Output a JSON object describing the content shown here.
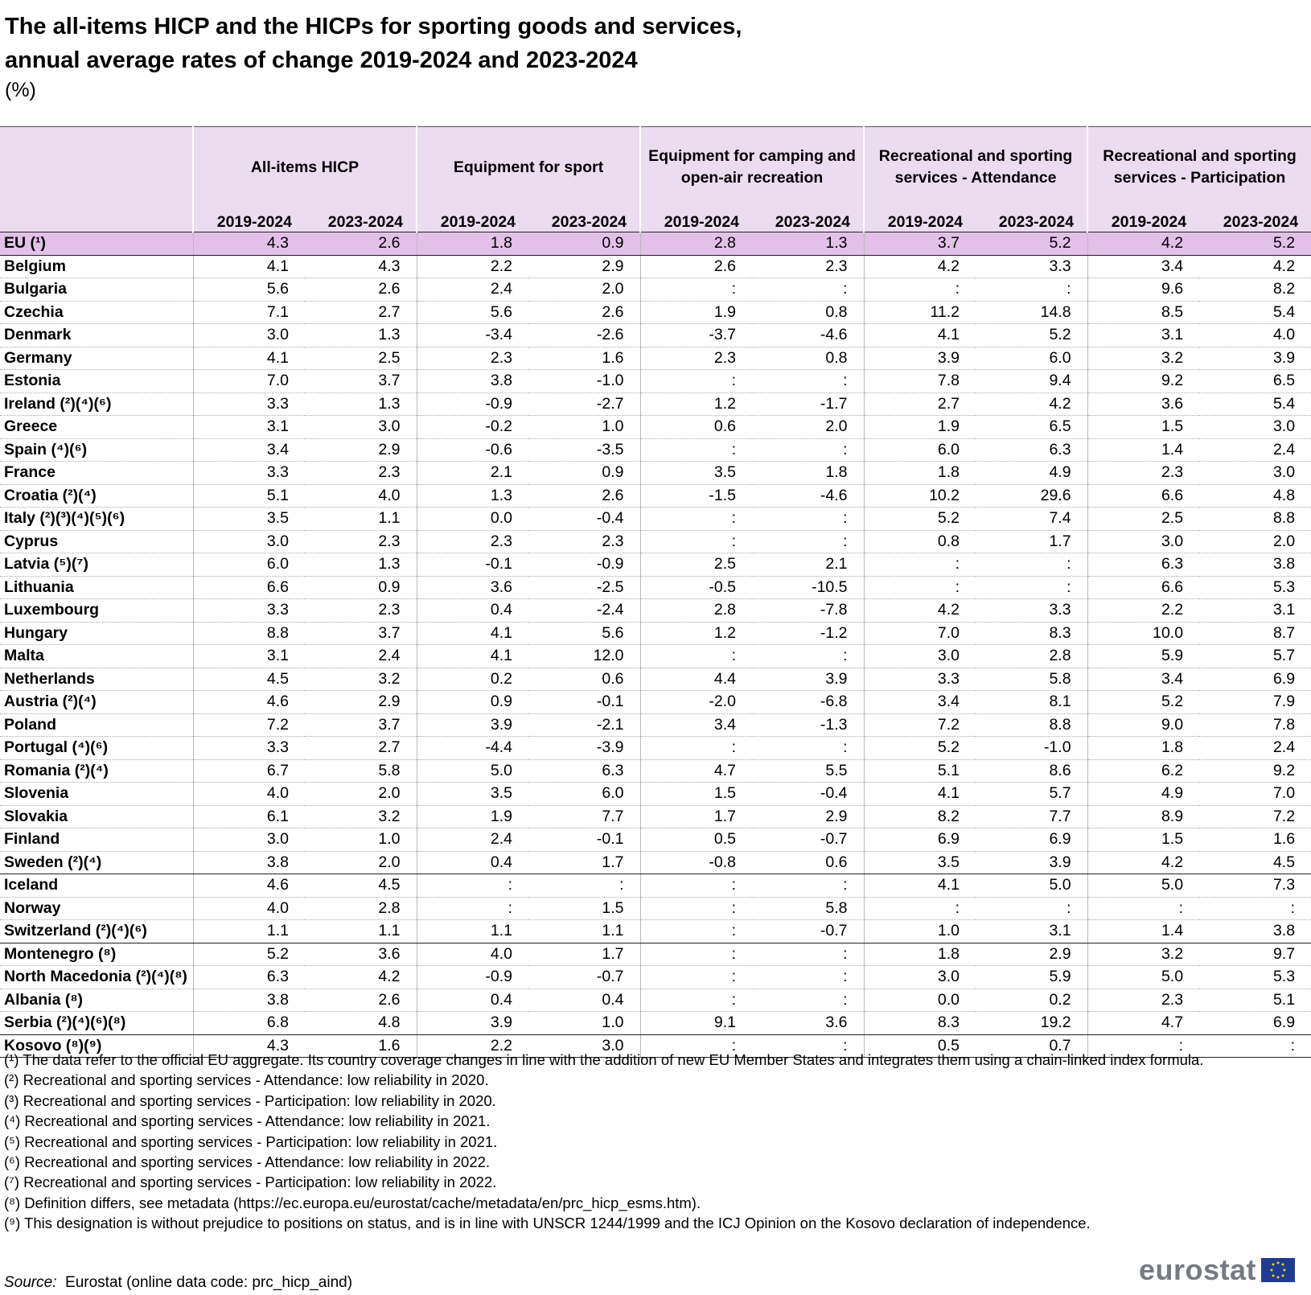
{
  "header": {
    "title_lines": [
      "The all-items HICP and the HICPs for sporting goods and services,",
      "annual average rates of change 2019-2024 and 2023-2024"
    ],
    "unit": "(%)"
  },
  "table": {
    "groups": [
      {
        "name": "All-items HICP",
        "periods": [
          "2019-2024",
          "2023-2024"
        ]
      },
      {
        "name": "Equipment for sport",
        "periods": [
          "2019-2024",
          "2023-2024"
        ]
      },
      {
        "name": "Equipment for camping and open-air recreation",
        "periods": [
          "2019-2024",
          "2023-2024"
        ]
      },
      {
        "name": "Recreational and sporting services - Attendance",
        "periods": [
          "2019-2024",
          "2023-2024"
        ]
      },
      {
        "name": "Recreational and sporting services - Participation",
        "periods": [
          "2019-2024",
          "2023-2024"
        ]
      }
    ],
    "row_groups": [
      [
        {
          "label": "EU (¹)",
          "values": [
            "4.3",
            "2.6",
            "1.8",
            "0.9",
            "2.8",
            "1.3",
            "3.7",
            "5.2",
            "4.2",
            "5.2"
          ]
        }
      ],
      [
        {
          "label": "Belgium",
          "values": [
            "4.1",
            "4.3",
            "2.2",
            "2.9",
            "2.6",
            "2.3",
            "4.2",
            "3.3",
            "3.4",
            "4.2"
          ]
        },
        {
          "label": "Bulgaria",
          "values": [
            "5.6",
            "2.6",
            "2.4",
            "2.0",
            ":",
            ":",
            ":",
            ":",
            "9.6",
            "8.2"
          ]
        },
        {
          "label": "Czechia",
          "values": [
            "7.1",
            "2.7",
            "5.6",
            "2.6",
            "1.9",
            "0.8",
            "11.2",
            "14.8",
            "8.5",
            "5.4"
          ]
        },
        {
          "label": "Denmark",
          "values": [
            "3.0",
            "1.3",
            "-3.4",
            "-2.6",
            "-3.7",
            "-4.6",
            "4.1",
            "5.2",
            "3.1",
            "4.0"
          ]
        },
        {
          "label": "Germany",
          "values": [
            "4.1",
            "2.5",
            "2.3",
            "1.6",
            "2.3",
            "0.8",
            "3.9",
            "6.0",
            "3.2",
            "3.9"
          ]
        },
        {
          "label": "Estonia",
          "values": [
            "7.0",
            "3.7",
            "3.8",
            "-1.0",
            ":",
            ":",
            "7.8",
            "9.4",
            "9.2",
            "6.5"
          ]
        },
        {
          "label": "Ireland (²)(⁴)(⁶)",
          "values": [
            "3.3",
            "1.3",
            "-0.9",
            "-2.7",
            "1.2",
            "-1.7",
            "2.7",
            "4.2",
            "3.6",
            "5.4"
          ]
        },
        {
          "label": "Greece",
          "values": [
            "3.1",
            "3.0",
            "-0.2",
            "1.0",
            "0.6",
            "2.0",
            "1.9",
            "6.5",
            "1.5",
            "3.0"
          ]
        },
        {
          "label": "Spain (⁴)(⁶)",
          "values": [
            "3.4",
            "2.9",
            "-0.6",
            "-3.5",
            ":",
            ":",
            "6.0",
            "6.3",
            "1.4",
            "2.4"
          ]
        },
        {
          "label": "France",
          "values": [
            "3.3",
            "2.3",
            "2.1",
            "0.9",
            "3.5",
            "1.8",
            "1.8",
            "4.9",
            "2.3",
            "3.0"
          ]
        },
        {
          "label": "Croatia (²)(⁴)",
          "values": [
            "5.1",
            "4.0",
            "1.3",
            "2.6",
            "-1.5",
            "-4.6",
            "10.2",
            "29.6",
            "6.6",
            "4.8"
          ]
        },
        {
          "label": "Italy (²)(³)(⁴)(⁵)(⁶)",
          "values": [
            "3.5",
            "1.1",
            "0.0",
            "-0.4",
            ":",
            ":",
            "5.2",
            "7.4",
            "2.5",
            "8.8"
          ]
        },
        {
          "label": "Cyprus",
          "values": [
            "3.0",
            "2.3",
            "2.3",
            "2.3",
            ":",
            ":",
            "0.8",
            "1.7",
            "3.0",
            "2.0"
          ]
        },
        {
          "label": "Latvia (⁵)(⁷)",
          "values": [
            "6.0",
            "1.3",
            "-0.1",
            "-0.9",
            "2.5",
            "2.1",
            ":",
            ":",
            "6.3",
            "3.8"
          ]
        },
        {
          "label": "Lithuania",
          "values": [
            "6.6",
            "0.9",
            "3.6",
            "-2.5",
            "-0.5",
            "-10.5",
            ":",
            ":",
            "6.6",
            "5.3"
          ]
        },
        {
          "label": "Luxembourg",
          "values": [
            "3.3",
            "2.3",
            "0.4",
            "-2.4",
            "2.8",
            "-7.8",
            "4.2",
            "3.3",
            "2.2",
            "3.1"
          ]
        },
        {
          "label": "Hungary",
          "values": [
            "8.8",
            "3.7",
            "4.1",
            "5.6",
            "1.2",
            "-1.2",
            "7.0",
            "8.3",
            "10.0",
            "8.7"
          ]
        },
        {
          "label": "Malta",
          "values": [
            "3.1",
            "2.4",
            "4.1",
            "12.0",
            ":",
            ":",
            "3.0",
            "2.8",
            "5.9",
            "5.7"
          ]
        },
        {
          "label": "Netherlands",
          "values": [
            "4.5",
            "3.2",
            "0.2",
            "0.6",
            "4.4",
            "3.9",
            "3.3",
            "5.8",
            "3.4",
            "6.9"
          ]
        },
        {
          "label": "Austria (²)(⁴)",
          "values": [
            "4.6",
            "2.9",
            "0.9",
            "-0.1",
            "-2.0",
            "-6.8",
            "3.4",
            "8.1",
            "5.2",
            "7.9"
          ]
        },
        {
          "label": "Poland",
          "values": [
            "7.2",
            "3.7",
            "3.9",
            "-2.1",
            "3.4",
            "-1.3",
            "7.2",
            "8.8",
            "9.0",
            "7.8"
          ]
        },
        {
          "label": "Portugal (⁴)(⁶)",
          "values": [
            "3.3",
            "2.7",
            "-4.4",
            "-3.9",
            ":",
            ":",
            "5.2",
            "-1.0",
            "1.8",
            "2.4"
          ]
        },
        {
          "label": "Romania (²)(⁴)",
          "values": [
            "6.7",
            "5.8",
            "5.0",
            "6.3",
            "4.7",
            "5.5",
            "5.1",
            "8.6",
            "6.2",
            "9.2"
          ]
        },
        {
          "label": "Slovenia",
          "values": [
            "4.0",
            "2.0",
            "3.5",
            "6.0",
            "1.5",
            "-0.4",
            "4.1",
            "5.7",
            "4.9",
            "7.0"
          ]
        },
        {
          "label": "Slovakia",
          "values": [
            "6.1",
            "3.2",
            "1.9",
            "7.7",
            "1.7",
            "2.9",
            "8.2",
            "7.7",
            "8.9",
            "7.2"
          ]
        },
        {
          "label": "Finland",
          "values": [
            "3.0",
            "1.0",
            "2.4",
            "-0.1",
            "0.5",
            "-0.7",
            "6.9",
            "6.9",
            "1.5",
            "1.6"
          ]
        },
        {
          "label": "Sweden (²)(⁴)",
          "values": [
            "3.8",
            "2.0",
            "0.4",
            "1.7",
            "-0.8",
            "0.6",
            "3.5",
            "3.9",
            "4.2",
            "4.5"
          ]
        }
      ],
      [
        {
          "label": "Iceland",
          "values": [
            "4.6",
            "4.5",
            ":",
            ":",
            ":",
            ":",
            "4.1",
            "5.0",
            "5.0",
            "7.3"
          ]
        },
        {
          "label": "Norway",
          "values": [
            "4.0",
            "2.8",
            ":",
            "1.5",
            ":",
            "5.8",
            ":",
            ":",
            ":",
            ":"
          ]
        },
        {
          "label": "Switzerland (²)(⁴)(⁶)",
          "values": [
            "1.1",
            "1.1",
            "1.1",
            "1.1",
            ":",
            "-0.7",
            "1.0",
            "3.1",
            "1.4",
            "3.8"
          ]
        }
      ],
      [
        {
          "label": "Montenegro (⁸)",
          "values": [
            "5.2",
            "3.6",
            "4.0",
            "1.7",
            ":",
            ":",
            "1.8",
            "2.9",
            "3.2",
            "9.7"
          ]
        },
        {
          "label": "North Macedonia (²)(⁴)(⁸)",
          "values": [
            "6.3",
            "4.2",
            "-0.9",
            "-0.7",
            ":",
            ":",
            "3.0",
            "5.9",
            "5.0",
            "5.3"
          ]
        },
        {
          "label": "Albania (⁸)",
          "values": [
            "3.8",
            "2.6",
            "0.4",
            "0.4",
            ":",
            ":",
            "0.0",
            "0.2",
            "2.3",
            "5.1"
          ]
        },
        {
          "label": "Serbia (²)(⁴)(⁶)(⁸)",
          "values": [
            "6.8",
            "4.8",
            "3.9",
            "1.0",
            "9.1",
            "3.6",
            "8.3",
            "19.2",
            "4.7",
            "6.9"
          ]
        }
      ],
      [
        {
          "label": "Kosovo (⁸)(⁹)",
          "values": [
            "4.3",
            "1.6",
            "2.2",
            "3.0",
            ":",
            ":",
            "0.5",
            "0.7",
            ":",
            ":"
          ]
        }
      ]
    ]
  },
  "footnotes": [
    "(¹) The data refer to the official EU aggregate. Its country coverage changes in line with the addition of new EU Member States and integrates them using a chain-linked index formula.",
    "(²) Recreational and sporting services - Attendance: low reliability in 2020.",
    "(³) Recreational and sporting services - Participation: low reliability in 2020.",
    "(⁴) Recreational and sporting services - Attendance: low reliability in 2021.",
    "(⁵) Recreational and sporting services - Participation: low reliability in 2021.",
    "(⁶) Recreational and sporting services - Attendance: low reliability in 2022.",
    "(⁷) Recreational and sporting services - Participation: low reliability in 2022.",
    "(⁸) Definition differs, see metadata (https://ec.europa.eu/eurostat/cache/metadata/en/prc_hicp_esms.htm).",
    "(⁹) This designation is without prejudice to positions on status, and is in line with UNSCR 1244/1999 and the ICJ Opinion on the Kosovo declaration of independence."
  ],
  "source": {
    "label": "Source:",
    "text": "Eurostat (online data code: prc_hicp_aind)"
  },
  "logo": "eurostat"
}
